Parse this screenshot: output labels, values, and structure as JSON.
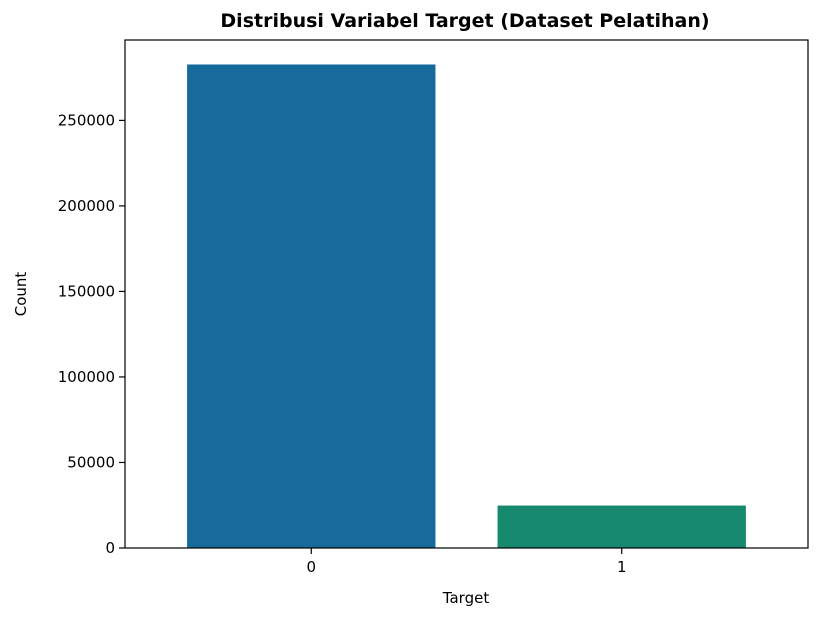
{
  "chart_data": {
    "type": "bar",
    "title": "Distribusi Variabel Target (Dataset Pelatihan)",
    "xlabel": "Target",
    "ylabel": "Count",
    "categories": [
      "0",
      "1"
    ],
    "values": [
      282686,
      24825
    ],
    "colors": [
      "#176a9c",
      "#16896e"
    ],
    "ylim": [
      0,
      297000
    ],
    "yticks": [
      0,
      50000,
      100000,
      150000,
      200000,
      250000
    ],
    "grid": false,
    "legend": "none"
  }
}
